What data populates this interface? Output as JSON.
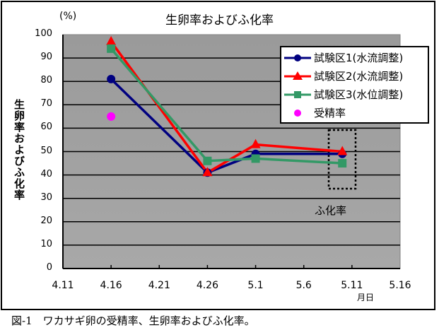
{
  "chart_data": {
    "type": "line",
    "title": "生卵率およびふ化率",
    "unit_label": "(%)",
    "xlabel": "月日",
    "ylabel": "生卵率およびふ化率",
    "ylim": [
      0,
      100
    ],
    "yticks": [
      "0",
      "10",
      "20",
      "30",
      "40",
      "50",
      "60",
      "70",
      "80",
      "90",
      "100"
    ],
    "xticks": [
      "4.11",
      "4.16",
      "4.21",
      "4.26",
      "5.1",
      "5.6",
      "5.11",
      "5.16"
    ],
    "grid": true,
    "legend_position": "upper right",
    "x": [
      "4.16",
      "4.26",
      "5.1",
      "5.10"
    ],
    "series": [
      {
        "name": "試験区1(水流調整)",
        "color": "#000080",
        "marker": "circle",
        "values": [
          81,
          41,
          49,
          49
        ]
      },
      {
        "name": "試験区2(水流調整)",
        "color": "#ff0000",
        "marker": "triangle",
        "values": [
          97,
          41,
          53,
          50
        ]
      },
      {
        "name": "試験区3(水位調整)",
        "color": "#339966",
        "marker": "square",
        "values": [
          94,
          46,
          47,
          45
        ]
      },
      {
        "name": "受精率",
        "color": "#ff00ff",
        "marker": "circle",
        "points": [
          {
            "x": "4.16",
            "y": 65
          }
        ]
      }
    ],
    "annotations": [
      {
        "text": "ふ化率",
        "target": "dotted box around 5.10 points"
      }
    ]
  },
  "caption": "図-1　ワカサギ卵の受精率、生卵率およびふ化率。",
  "colors": {
    "plot_background": "#a0a0a0",
    "gridline": "#000000"
  }
}
